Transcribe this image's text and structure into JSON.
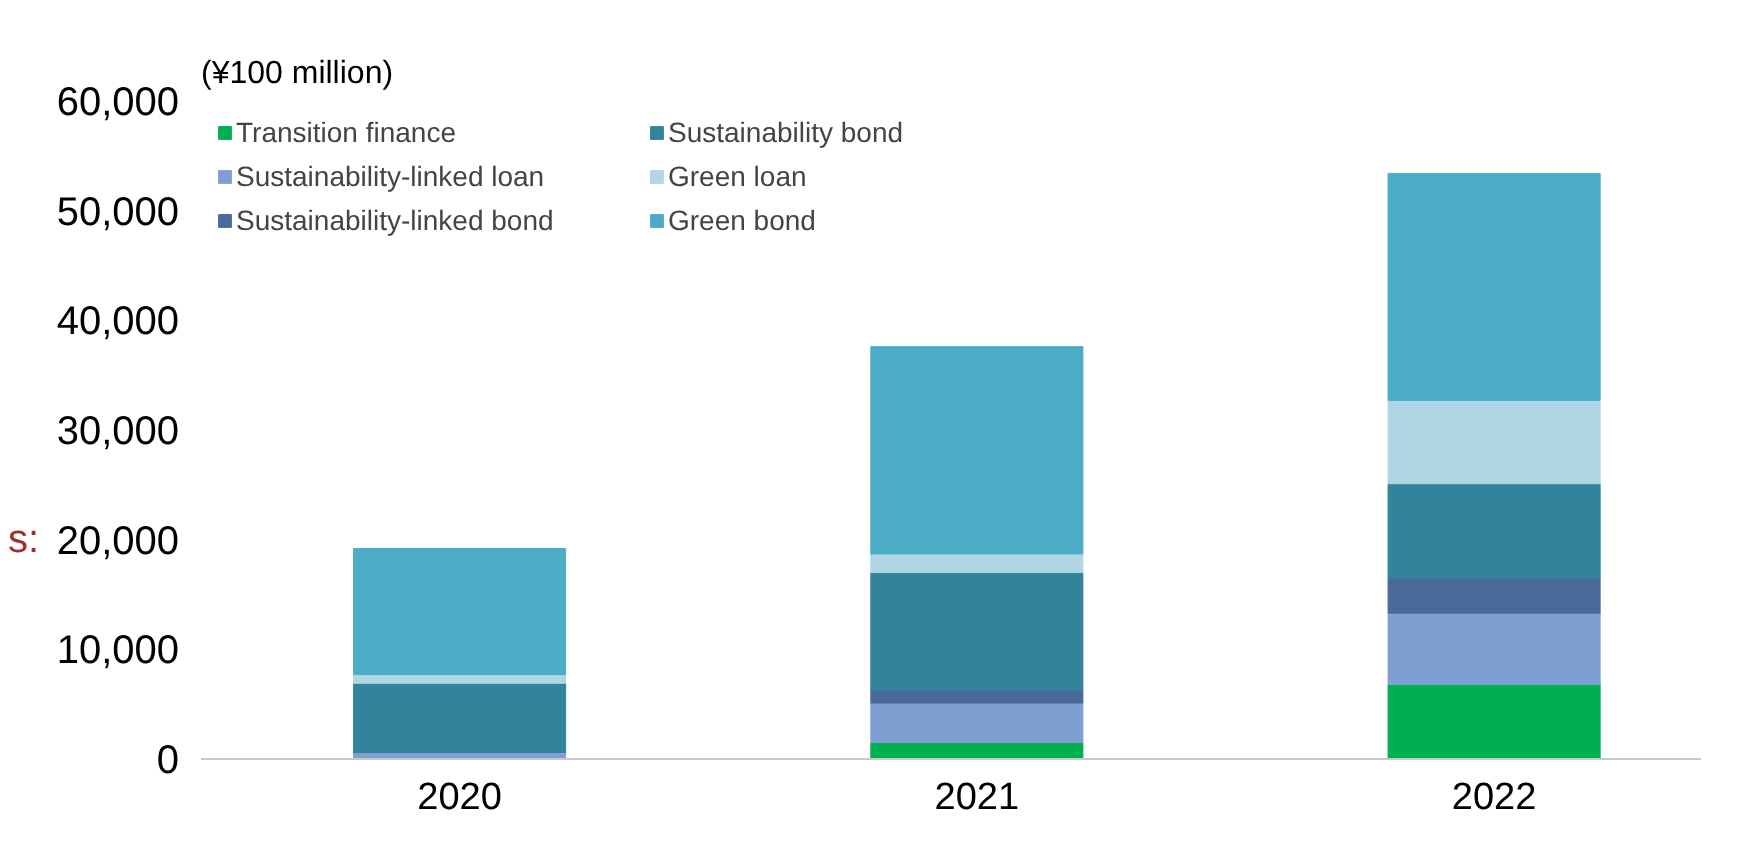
{
  "chart_data": {
    "type": "bar",
    "stacked": true,
    "ylabel": "(¥100 million)",
    "categories": [
      "2020",
      "2021",
      "2022"
    ],
    "series": [
      {
        "name": "Transition finance",
        "color": "#00b050",
        "values": [
          0,
          1500,
          6800
        ]
      },
      {
        "name": "Sustainability-linked loan",
        "color": "#7f9fd3",
        "values": [
          600,
          3600,
          6500
        ]
      },
      {
        "name": "Sustainability-linked bond",
        "color": "#4a6b9a",
        "values": [
          0,
          1200,
          3200
        ]
      },
      {
        "name": "Sustainability bond",
        "color": "#31849b",
        "values": [
          6300,
          10700,
          8600
        ]
      },
      {
        "name": "Green loan",
        "color": "#b0d6e3",
        "values": [
          800,
          1700,
          7600
        ]
      },
      {
        "name": "Green bond",
        "color": "#4bacc6",
        "values": [
          11500,
          18900,
          20700
        ]
      }
    ],
    "ylim": [
      0,
      60000
    ],
    "yticks": [
      {
        "value": 0,
        "label": "0"
      },
      {
        "value": 10000,
        "label": "10,000"
      },
      {
        "value": 20000,
        "label": "20,000"
      },
      {
        "value": 30000,
        "label": "30,000"
      },
      {
        "value": 40000,
        "label": "40,000"
      },
      {
        "value": 50000,
        "label": "50,000"
      },
      {
        "value": 60000,
        "label": "60,000"
      }
    ],
    "legend": "top",
    "annotations": [
      "s:"
    ]
  }
}
